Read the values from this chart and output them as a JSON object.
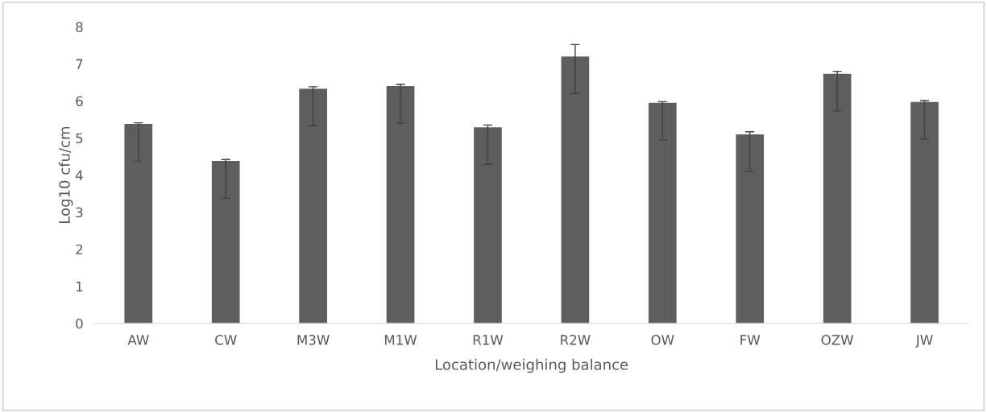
{
  "chart_data": {
    "type": "bar",
    "xlabel": "Location/weighing balance",
    "ylabel": "Log10 cfu/cm",
    "categories": [
      "AW",
      "CW",
      "M3W",
      "M1W",
      "R1W",
      "R2W",
      "OW",
      "FW",
      "OZW",
      "JW"
    ],
    "values": [
      5.38,
      4.38,
      6.33,
      6.4,
      5.29,
      7.2,
      5.95,
      5.1,
      6.73,
      5.97
    ],
    "errors": [
      [
        4.38,
        5.41
      ],
      [
        3.38,
        4.42
      ],
      [
        5.33,
        6.38
      ],
      [
        5.4,
        6.45
      ],
      [
        4.29,
        5.35
      ],
      [
        6.2,
        7.52
      ],
      [
        4.95,
        5.98
      ],
      [
        4.1,
        5.17
      ],
      [
        5.73,
        6.8
      ],
      [
        4.97,
        6.01
      ]
    ],
    "color": "#5e5e5e",
    "ylim": [
      0,
      8
    ],
    "yticks": [
      0,
      1,
      2,
      3,
      4,
      5,
      6,
      7,
      8
    ],
    "grid": false
  }
}
